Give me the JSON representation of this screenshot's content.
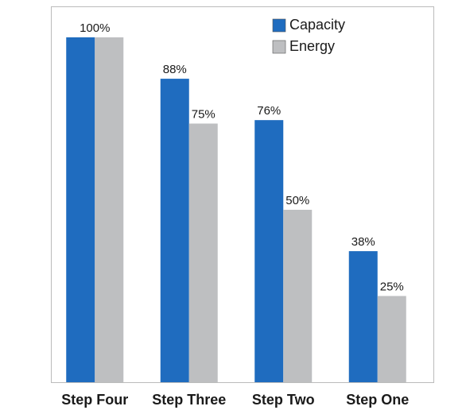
{
  "chart_data": {
    "type": "bar",
    "categories": [
      "Step Four",
      "Step Three",
      "Step Two",
      "Step One"
    ],
    "series": [
      {
        "name": "Capacity",
        "color": "#1f6cbf",
        "values": [
          100,
          88,
          76,
          38
        ],
        "value_labels": [
          "100%",
          "88%",
          "76%",
          "38%"
        ]
      },
      {
        "name": "Energy",
        "color": "#bebfc1",
        "values": [
          100,
          75,
          50,
          25
        ],
        "value_labels": [
          null,
          "75%",
          "50%",
          "25%"
        ]
      }
    ],
    "ylim": [
      0,
      100
    ]
  }
}
